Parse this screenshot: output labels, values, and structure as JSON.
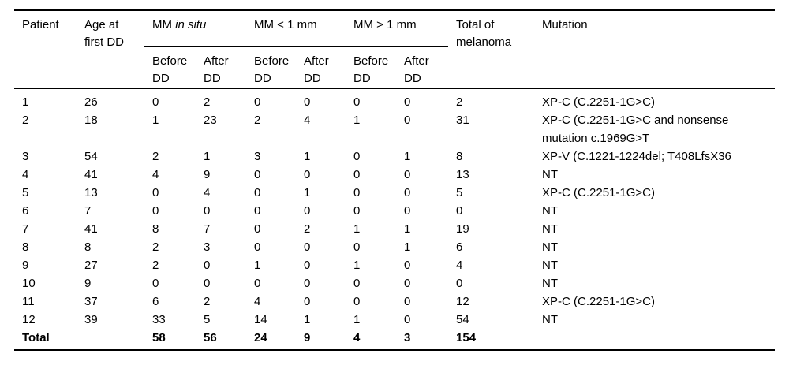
{
  "header": {
    "col_patient": "Patient",
    "col_age": "Age at\nfirst DD",
    "group_insitu_prefix": "MM ",
    "group_insitu_italic": "in situ",
    "group_lt1mm": "MM < 1 mm",
    "group_gt1mm": "MM > 1 mm",
    "sub_before": "Before\nDD",
    "sub_after": "After\nDD",
    "col_total": "Total of\nmelanoma",
    "col_mutation": "Mutation"
  },
  "rows": [
    [
      "1",
      "26",
      "0",
      "2",
      "0",
      "0",
      "0",
      "0",
      "2",
      "XP-C (C.2251-1G>C)"
    ],
    [
      "2",
      "18",
      "1",
      "23",
      "2",
      "4",
      "1",
      "0",
      "31",
      "XP-C (C.2251-1G>C and nonsense\nmutation c.1969G>T"
    ],
    [
      "3",
      "54",
      "2",
      "1",
      "3",
      "1",
      "0",
      "1",
      "8",
      "XP-V (C.1221-1224del; T408LfsX36"
    ],
    [
      "4",
      "41",
      "4",
      "9",
      "0",
      "0",
      "0",
      "0",
      "13",
      "NT"
    ],
    [
      "5",
      "13",
      "0",
      "4",
      "0",
      "1",
      "0",
      "0",
      "5",
      "XP-C (C.2251-1G>C)"
    ],
    [
      "6",
      "7",
      "0",
      "0",
      "0",
      "0",
      "0",
      "0",
      "0",
      "NT"
    ],
    [
      "7",
      "41",
      "8",
      "7",
      "0",
      "2",
      "1",
      "1",
      "19",
      "NT"
    ],
    [
      "8",
      "8",
      "2",
      "3",
      "0",
      "0",
      "0",
      "1",
      "6",
      "NT"
    ],
    [
      "9",
      "27",
      "2",
      "0",
      "1",
      "0",
      "1",
      "0",
      "4",
      "NT"
    ],
    [
      "10",
      "9",
      "0",
      "0",
      "0",
      "0",
      "0",
      "0",
      "0",
      "NT"
    ],
    [
      "11",
      "37",
      "6",
      "2",
      "4",
      "0",
      "0",
      "0",
      "12",
      "XP-C (C.2251-1G>C)"
    ],
    [
      "12",
      "39",
      "33",
      "5",
      "14",
      "1",
      "1",
      "0",
      "54",
      "NT"
    ]
  ],
  "total_row": [
    "Total",
    "",
    "58",
    "56",
    "24",
    "9",
    "4",
    "3",
    "154",
    ""
  ],
  "colors": {
    "text": "#000000",
    "background": "#ffffff",
    "rule": "#000000"
  }
}
